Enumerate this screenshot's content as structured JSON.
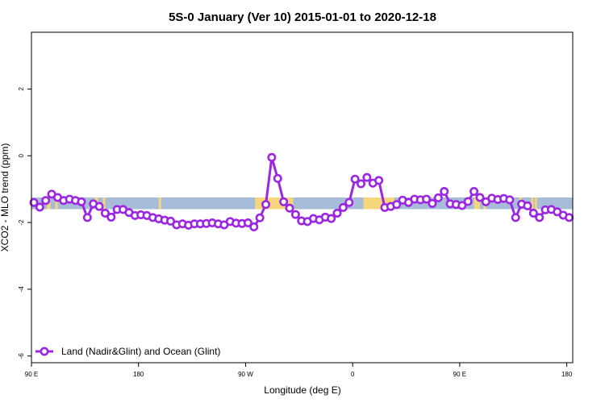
{
  "chart_data": {
    "type": "line",
    "title": "5S-0 January (Ver 10)   2015-01-01 to 2020-12-18",
    "xlabel": "Longitude (deg E)",
    "ylabel": "XCO2 - MLO trend (ppm)",
    "x_ticks": [
      {
        "value": 90,
        "label": "90 E"
      },
      {
        "value": 180,
        "label": "180"
      },
      {
        "value": 270,
        "label": "90 W"
      },
      {
        "value": 360,
        "label": "0"
      },
      {
        "value": 450,
        "label": "90 E"
      },
      {
        "value": 540,
        "label": "180"
      }
    ],
    "y_ticks": [
      {
        "value": 2,
        "label": "2"
      },
      {
        "value": 0,
        "label": "0"
      },
      {
        "value": -2,
        "label": "-2"
      },
      {
        "value": -4,
        "label": "-4"
      },
      {
        "value": -6,
        "label": "-6"
      }
    ],
    "xlim": [
      90,
      545
    ],
    "ylim": [
      -6.2,
      3.7
    ],
    "grid": false,
    "legend_position": "bottom-left",
    "band": {
      "y_range": [
        -1.6,
        -1.25
      ],
      "ocean_color": "#a7bcd9",
      "land_color": "#f6d67d",
      "land_segments": [
        [
          103,
          106
        ],
        [
          110,
          112
        ],
        [
          143,
          146
        ],
        [
          150,
          152
        ],
        [
          278,
          310
        ],
        [
          300,
          303
        ],
        [
          369,
          395
        ],
        [
          197,
          199
        ],
        [
          462,
          466
        ],
        [
          465,
          467
        ],
        [
          470,
          472
        ],
        [
          500,
          502
        ],
        [
          510,
          512
        ],
        [
          513,
          515
        ]
      ]
    },
    "series": [
      {
        "name": "Land (Nadir&Glint) and Ocean (Glint)",
        "color": "#9b28e0",
        "x": [
          92,
          97,
          102,
          107,
          112,
          117,
          122,
          127,
          132,
          137,
          142,
          147,
          152,
          157,
          162,
          167,
          172,
          177,
          182,
          187,
          192,
          197,
          202,
          207,
          212,
          217,
          222,
          227,
          232,
          237,
          242,
          247,
          252,
          257,
          262,
          267,
          272,
          277,
          282,
          287,
          292,
          297,
          302,
          307,
          312,
          317,
          322,
          327,
          332,
          337,
          342,
          347,
          352,
          357,
          362,
          367,
          372,
          377,
          382,
          387,
          392,
          397,
          402,
          407,
          412,
          417,
          422,
          427,
          432,
          437,
          442,
          447,
          452,
          457,
          462,
          467,
          472,
          477,
          482,
          487,
          492,
          497,
          502,
          507,
          512,
          517,
          522,
          527,
          532,
          537,
          542
        ],
        "y": [
          -1.4,
          -1.54,
          -1.34,
          -1.15,
          -1.25,
          -1.34,
          -1.3,
          -1.34,
          -1.38,
          -1.85,
          -1.44,
          -1.52,
          -1.72,
          -1.84,
          -1.61,
          -1.61,
          -1.7,
          -1.79,
          -1.77,
          -1.79,
          -1.85,
          -1.89,
          -1.93,
          -1.96,
          -2.07,
          -2.04,
          -2.08,
          -2.04,
          -2.04,
          -2.03,
          -2.01,
          -2.04,
          -2.07,
          -1.97,
          -2.02,
          -2.03,
          -2.01,
          -2.13,
          -1.86,
          -1.46,
          -0.05,
          -0.68,
          -1.38,
          -1.57,
          -1.76,
          -1.95,
          -1.97,
          -1.88,
          -1.92,
          -1.84,
          -1.88,
          -1.72,
          -1.55,
          -1.4,
          -0.7,
          -0.84,
          -0.65,
          -0.82,
          -0.74,
          -1.55,
          -1.52,
          -1.46,
          -1.33,
          -1.4,
          -1.3,
          -1.32,
          -1.3,
          -1.43,
          -1.26,
          -1.07,
          -1.44,
          -1.46,
          -1.49,
          -1.37,
          -1.07,
          -1.25,
          -1.38,
          -1.27,
          -1.31,
          -1.28,
          -1.32,
          -1.85,
          -1.45,
          -1.5,
          -1.72,
          -1.85,
          -1.62,
          -1.61,
          -1.68,
          -1.78,
          -1.85
        ]
      }
    ]
  }
}
